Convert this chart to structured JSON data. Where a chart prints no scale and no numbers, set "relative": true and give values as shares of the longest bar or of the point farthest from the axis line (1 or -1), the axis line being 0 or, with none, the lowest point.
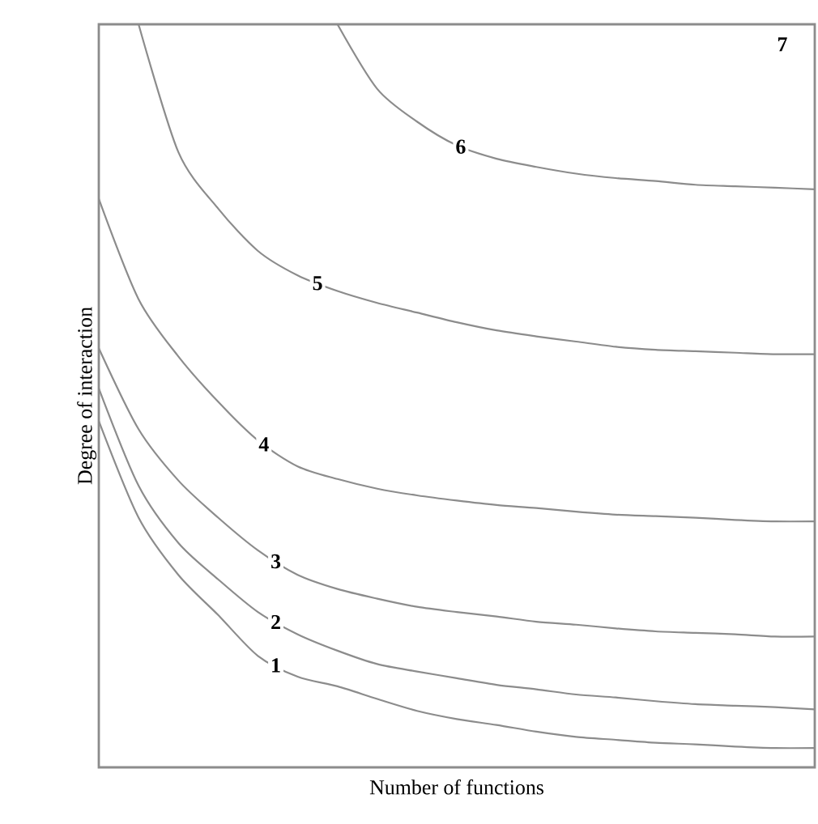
{
  "chart_data": {
    "type": "line",
    "relative": true,
    "xlabel": "Number of functions",
    "ylabel": "Degree of interaction",
    "categories": [
      null,
      null,
      null,
      null,
      null,
      null,
      null,
      null,
      null,
      null,
      null,
      null,
      null,
      null,
      null,
      null,
      null,
      null,
      null
    ],
    "series": [
      {
        "name": "1",
        "color": "#8c8c8c",
        "values": [
          0.466,
          0.336,
          0.259,
          0.205,
          0.15,
          0.122,
          0.109,
          0.092,
          0.076,
          0.065,
          0.057,
          0.048,
          0.041,
          0.037,
          0.033,
          0.031,
          0.028,
          0.026,
          0.026
        ]
      },
      {
        "name": "2",
        "color": "#8c8c8c",
        "values": [
          0.51,
          0.379,
          0.302,
          0.253,
          0.209,
          0.179,
          0.157,
          0.139,
          0.129,
          0.12,
          0.111,
          0.105,
          0.098,
          0.094,
          0.089,
          0.085,
          0.083,
          0.081,
          0.078
        ]
      },
      {
        "name": "3",
        "color": "#8c8c8c",
        "values": [
          0.564,
          0.455,
          0.386,
          0.336,
          0.292,
          0.259,
          0.24,
          0.227,
          0.216,
          0.209,
          0.203,
          0.196,
          0.192,
          0.187,
          0.183,
          0.181,
          0.179,
          0.176,
          0.176
        ]
      },
      {
        "name": "4",
        "color": "#8c8c8c",
        "values": [
          0.765,
          0.63,
          0.553,
          0.492,
          0.44,
          0.405,
          0.388,
          0.375,
          0.366,
          0.359,
          0.353,
          0.349,
          0.344,
          0.34,
          0.338,
          0.336,
          0.333,
          0.331,
          0.331
        ]
      },
      {
        "name": "5",
        "color": "#8c8c8c",
        "values": [
          null,
          1,
          0.828,
          0.752,
          0.695,
          0.662,
          0.641,
          0.625,
          0.612,
          0.599,
          0.588,
          0.58,
          0.573,
          0.566,
          0.562,
          0.56,
          0.558,
          0.556,
          0.556
        ]
      },
      {
        "name": "6",
        "color": "#8c8c8c",
        "values": [
          null,
          null,
          null,
          null,
          null,
          null,
          1,
          0.913,
          0.869,
          0.837,
          0.819,
          0.808,
          0.799,
          0.793,
          0.789,
          0.784,
          0.782,
          0.78,
          0.778
        ]
      }
    ],
    "annotations": [
      "7"
    ]
  }
}
